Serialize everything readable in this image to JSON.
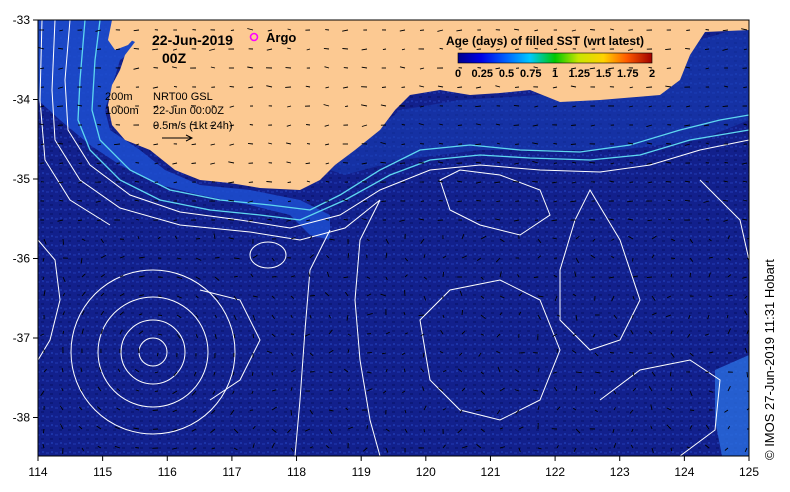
{
  "header": {
    "date": "22-Jun-2019",
    "hour": "00Z",
    "argo_label": "Argo"
  },
  "legend": {
    "depth_200": "200m",
    "depth_1000": "1000m",
    "product": "NRT00 GSL",
    "valid_time": "22-Jun 00:00Z",
    "vector_scale": "0.5m/s (1kt 24h)"
  },
  "colorbar": {
    "title": "Age (days) of filled SST (wrt latest)",
    "ticks": [
      "0",
      "0.25",
      "0.5",
      "0.75",
      "1",
      "1.25",
      "1.5",
      "1.75",
      "2"
    ],
    "colors": [
      "#00008c",
      "#0000e6",
      "#0064ff",
      "#00c8ff",
      "#00c800",
      "#c8e600",
      "#ffd200",
      "#ff5a00",
      "#a00000"
    ]
  },
  "axes": {
    "x_ticks": [
      "114",
      "115",
      "116",
      "117",
      "118",
      "119",
      "120",
      "121",
      "122",
      "123",
      "124",
      "125"
    ],
    "y_ticks": [
      "-33",
      "-34",
      "-35",
      "-36",
      "-37",
      "-38"
    ]
  },
  "credit": "© IMOS 27-Jun-2019 11:31 Hobart",
  "colors": {
    "ocean": "#12208c",
    "land": "#fcc992",
    "isobath": "#5fd8f0",
    "contour": "#ffffff"
  }
}
